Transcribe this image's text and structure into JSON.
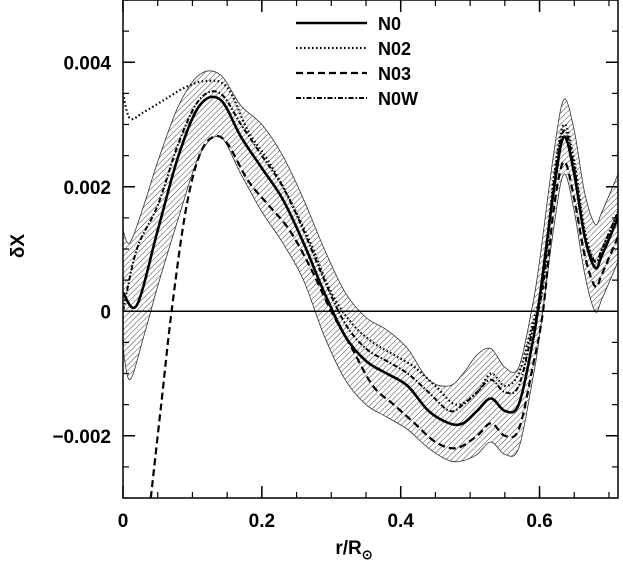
{
  "chart_data": {
    "type": "line",
    "xlabel": "r/R",
    "xlabel_subscript": "⊙",
    "ylabel": "δX",
    "xlim": [
      0,
      0.713
    ],
    "ylim": [
      -0.003,
      0.005
    ],
    "x_ticks": [
      {
        "value": 0,
        "label": "0"
      },
      {
        "value": 0.2,
        "label": "0.2"
      },
      {
        "value": 0.4,
        "label": "0.4"
      },
      {
        "value": 0.6,
        "label": "0.6"
      }
    ],
    "y_ticks": [
      {
        "value": -0.002,
        "label": "−0.002"
      },
      {
        "value": 0,
        "label": "0"
      },
      {
        "value": 0.002,
        "label": "0.002"
      },
      {
        "value": 0.004,
        "label": "0.004"
      }
    ],
    "reference_line_y": 0,
    "legend_position": "top-center",
    "band_fill": "hatched",
    "series": [
      {
        "name": "N0",
        "style": "solid",
        "x": [
          0.0,
          0.02,
          0.05,
          0.08,
          0.11,
          0.14,
          0.17,
          0.2,
          0.23,
          0.26,
          0.29,
          0.32,
          0.35,
          0.38,
          0.41,
          0.44,
          0.47,
          0.49,
          0.51,
          0.53,
          0.55,
          0.57,
          0.59,
          0.6,
          0.62,
          0.635,
          0.65,
          0.665,
          0.68,
          0.69,
          0.713
        ],
        "y": [
          0.0003,
          0.0001,
          0.0013,
          0.0025,
          0.0033,
          0.0034,
          0.0028,
          0.0023,
          0.0018,
          0.0011,
          0.0003,
          -0.0004,
          -0.0008,
          -0.001,
          -0.0012,
          -0.0016,
          -0.0018,
          -0.0018,
          -0.0016,
          -0.0014,
          -0.0016,
          -0.0015,
          -0.0005,
          0.0002,
          0.0019,
          0.0028,
          0.0022,
          0.0012,
          0.0007,
          0.0009,
          0.0015
        ]
      },
      {
        "name": "N02",
        "style": "dotted",
        "x": [
          0.0,
          0.01,
          0.03,
          0.06,
          0.09,
          0.12,
          0.15,
          0.18,
          0.21,
          0.24,
          0.27,
          0.3,
          0.33,
          0.36,
          0.39,
          0.42,
          0.45,
          0.48,
          0.51,
          0.53,
          0.55,
          0.57,
          0.59,
          0.605,
          0.62,
          0.635,
          0.65,
          0.665,
          0.68,
          0.69,
          0.713
        ],
        "y": [
          0.0035,
          0.0031,
          0.0032,
          0.0034,
          0.0036,
          0.0037,
          0.0036,
          0.0029,
          0.0024,
          0.0018,
          0.0011,
          0.0003,
          -0.0002,
          -0.0005,
          -0.0007,
          -0.0009,
          -0.0012,
          -0.0015,
          -0.0013,
          -0.001,
          -0.0012,
          -0.001,
          -0.0002,
          0.0005,
          0.0021,
          0.003,
          0.0024,
          0.0013,
          0.0008,
          0.001,
          0.0016
        ]
      },
      {
        "name": "N03",
        "style": "dashed",
        "x": [
          0.04,
          0.055,
          0.07,
          0.09,
          0.11,
          0.13,
          0.15,
          0.18,
          0.21,
          0.24,
          0.27,
          0.3,
          0.33,
          0.36,
          0.39,
          0.42,
          0.45,
          0.48,
          0.51,
          0.53,
          0.55,
          0.57,
          0.59,
          0.605,
          0.62,
          0.635,
          0.65,
          0.665,
          0.68,
          0.69,
          0.713
        ],
        "y": [
          -0.003,
          -0.0015,
          0.0,
          0.0016,
          0.0025,
          0.0028,
          0.0027,
          0.0021,
          0.0017,
          0.0013,
          0.0007,
          0.0,
          -0.0006,
          -0.0012,
          -0.0015,
          -0.0018,
          -0.0021,
          -0.0022,
          -0.002,
          -0.0018,
          -0.002,
          -0.0019,
          -0.0009,
          0.0,
          0.0016,
          0.0024,
          0.0018,
          0.0009,
          0.0004,
          0.0006,
          0.0012
        ]
      },
      {
        "name": "N0W",
        "style": "dash-dot",
        "x": [
          0.0,
          0.02,
          0.05,
          0.08,
          0.11,
          0.14,
          0.17,
          0.2,
          0.23,
          0.26,
          0.29,
          0.32,
          0.35,
          0.38,
          0.41,
          0.44,
          0.47,
          0.49,
          0.51,
          0.53,
          0.55,
          0.57,
          0.59,
          0.605,
          0.62,
          0.635,
          0.65,
          0.665,
          0.68,
          0.69,
          0.713
        ],
        "y": [
          0.0,
          0.001,
          0.0017,
          0.0027,
          0.0034,
          0.0035,
          0.003,
          0.0025,
          0.002,
          0.0013,
          0.0005,
          -0.0002,
          -0.0006,
          -0.0008,
          -0.001,
          -0.0013,
          -0.0016,
          -0.0015,
          -0.0013,
          -0.0011,
          -0.0013,
          -0.0012,
          -0.0003,
          0.0004,
          0.002,
          0.0029,
          0.0023,
          0.0012,
          0.0008,
          0.001,
          0.0016
        ]
      }
    ],
    "band": {
      "x": [
        0.0,
        0.01,
        0.03,
        0.05,
        0.08,
        0.11,
        0.14,
        0.17,
        0.2,
        0.23,
        0.26,
        0.29,
        0.32,
        0.35,
        0.38,
        0.41,
        0.44,
        0.47,
        0.49,
        0.51,
        0.53,
        0.55,
        0.57,
        0.59,
        0.6,
        0.62,
        0.635,
        0.65,
        0.665,
        0.68,
        0.69,
        0.713
      ],
      "upper": [
        0.0013,
        0.0011,
        0.0017,
        0.0024,
        0.0033,
        0.0038,
        0.0038,
        0.0033,
        0.003,
        0.0025,
        0.0018,
        0.001,
        0.0003,
        -0.0001,
        -0.0003,
        -0.0006,
        -0.0011,
        -0.0012,
        -0.001,
        -0.0007,
        -0.0006,
        -0.0009,
        -0.0009,
        0.0001,
        0.0008,
        0.0025,
        0.0034,
        0.0029,
        0.0019,
        0.0014,
        0.0016,
        0.0022
      ],
      "lower": [
        -0.0006,
        -0.0011,
        -0.0004,
        0.0004,
        0.0015,
        0.0025,
        0.0028,
        0.0022,
        0.0016,
        0.0011,
        0.0005,
        -0.0004,
        -0.0011,
        -0.0015,
        -0.0017,
        -0.0019,
        -0.0022,
        -0.0024,
        -0.0024,
        -0.0023,
        -0.0021,
        -0.0023,
        -0.0022,
        -0.0011,
        -0.0004,
        0.0013,
        0.0022,
        0.0016,
        0.0006,
        0.0,
        0.0002,
        0.0008
      ]
    }
  }
}
